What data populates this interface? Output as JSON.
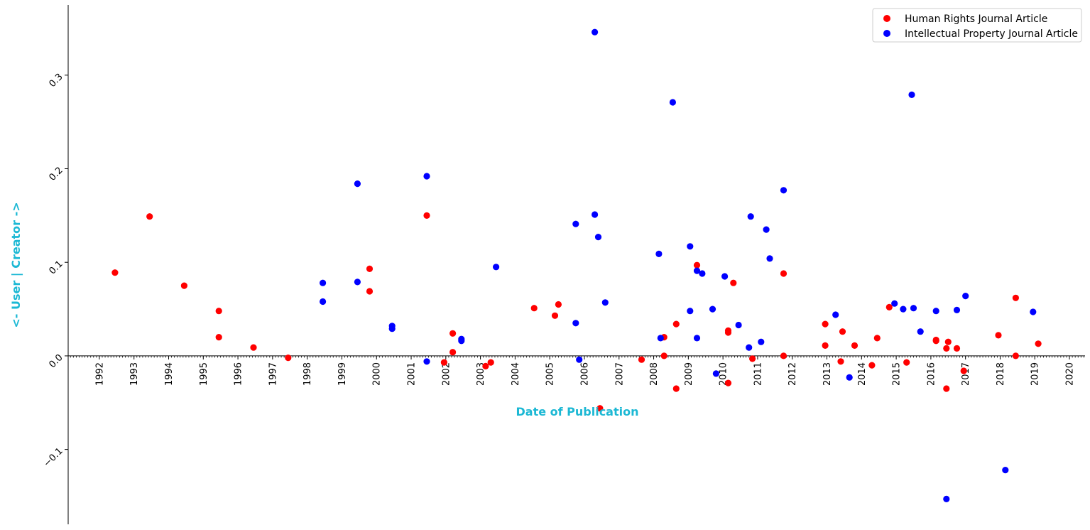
{
  "chart_data": {
    "type": "scatter",
    "xlabel": "Date of Publication",
    "ylabel": "<- User | Creator ->",
    "label_color": "#1cb8d4",
    "xlim": [
      1991.1,
      2020.45
    ],
    "ylim": [
      -0.18,
      0.375
    ],
    "x_ticks": [
      "1992",
      "1993",
      "1994",
      "1995",
      "1996",
      "1997",
      "1998",
      "1999",
      "2000",
      "2001",
      "2002",
      "2003",
      "2004",
      "2005",
      "2006",
      "2007",
      "2008",
      "2009",
      "2010",
      "2011",
      "2012",
      "2013",
      "2014",
      "2015",
      "2016",
      "2017",
      "2018",
      "2019",
      "2020"
    ],
    "y_ticks": [
      {
        "value": -0.1,
        "label": "−0.1"
      },
      {
        "value": 0.0,
        "label": "0.0"
      },
      {
        "value": 0.1,
        "label": "0.1"
      },
      {
        "value": 0.2,
        "label": "0.2"
      },
      {
        "value": 0.3,
        "label": "0.3"
      }
    ],
    "legend_position": "top-right",
    "series": [
      {
        "name": "Human Rights Journal Article",
        "color": "#ff0000",
        "points": [
          [
            1992.45,
            0.089
          ],
          [
            1993.45,
            0.149
          ],
          [
            1994.45,
            0.075
          ],
          [
            1995.45,
            0.048
          ],
          [
            1995.45,
            0.02
          ],
          [
            1996.45,
            0.009
          ],
          [
            1997.45,
            -0.002
          ],
          [
            1999.8,
            0.093
          ],
          [
            1999.8,
            0.069
          ],
          [
            2001.45,
            0.15
          ],
          [
            2001.95,
            -0.007
          ],
          [
            2002.2,
            0.024
          ],
          [
            2002.2,
            0.004
          ],
          [
            2003.15,
            -0.011
          ],
          [
            2003.3,
            -0.007
          ],
          [
            2004.55,
            0.051
          ],
          [
            2005.15,
            0.043
          ],
          [
            2005.25,
            0.055
          ],
          [
            2006.45,
            -0.056
          ],
          [
            2007.65,
            -0.004
          ],
          [
            2008.3,
            0.02
          ],
          [
            2008.3,
            0.0
          ],
          [
            2008.65,
            0.034
          ],
          [
            2008.65,
            -0.035
          ],
          [
            2009.25,
            0.097
          ],
          [
            2010.15,
            0.027
          ],
          [
            2010.15,
            0.025
          ],
          [
            2010.15,
            -0.029
          ],
          [
            2010.3,
            0.078
          ],
          [
            2010.85,
            -0.003
          ],
          [
            2011.75,
            0.088
          ],
          [
            2011.75,
            0.0
          ],
          [
            2012.95,
            0.034
          ],
          [
            2012.95,
            0.011
          ],
          [
            2013.4,
            -0.006
          ],
          [
            2013.45,
            0.026
          ],
          [
            2013.8,
            0.011
          ],
          [
            2014.3,
            -0.01
          ],
          [
            2014.45,
            0.019
          ],
          [
            2014.8,
            0.052
          ],
          [
            2015.3,
            -0.007
          ],
          [
            2016.15,
            0.017
          ],
          [
            2016.15,
            0.016
          ],
          [
            2016.45,
            0.008
          ],
          [
            2016.45,
            -0.035
          ],
          [
            2016.5,
            0.015
          ],
          [
            2016.75,
            0.008
          ],
          [
            2016.95,
            -0.016
          ],
          [
            2017.95,
            0.022
          ],
          [
            2018.45,
            0.062
          ],
          [
            2018.45,
            0.0
          ],
          [
            2019.1,
            0.013
          ]
        ]
      },
      {
        "name": "Intellectual Property Journal Article",
        "color": "#0000ff",
        "points": [
          [
            1998.45,
            0.078
          ],
          [
            1998.45,
            0.058
          ],
          [
            1999.45,
            0.184
          ],
          [
            1999.45,
            0.079
          ],
          [
            2000.45,
            0.032
          ],
          [
            2000.45,
            0.029
          ],
          [
            2001.45,
            0.192
          ],
          [
            2001.45,
            -0.006
          ],
          [
            2002.45,
            0.018
          ],
          [
            2002.45,
            0.016
          ],
          [
            2003.45,
            0.095
          ],
          [
            2005.75,
            0.141
          ],
          [
            2005.75,
            0.035
          ],
          [
            2005.85,
            -0.004
          ],
          [
            2006.3,
            0.346
          ],
          [
            2006.3,
            0.151
          ],
          [
            2006.4,
            0.127
          ],
          [
            2006.6,
            0.057
          ],
          [
            2008.15,
            0.109
          ],
          [
            2008.2,
            0.019
          ],
          [
            2008.55,
            0.271
          ],
          [
            2009.05,
            0.117
          ],
          [
            2009.05,
            0.048
          ],
          [
            2009.25,
            0.091
          ],
          [
            2009.25,
            0.019
          ],
          [
            2009.4,
            0.088
          ],
          [
            2009.7,
            0.05
          ],
          [
            2009.8,
            -0.019
          ],
          [
            2010.05,
            0.085
          ],
          [
            2010.45,
            0.033
          ],
          [
            2010.75,
            0.009
          ],
          [
            2010.8,
            0.149
          ],
          [
            2011.1,
            0.015
          ],
          [
            2011.25,
            0.135
          ],
          [
            2011.35,
            0.104
          ],
          [
            2011.75,
            0.177
          ],
          [
            2013.25,
            0.044
          ],
          [
            2013.65,
            -0.023
          ],
          [
            2014.95,
            0.056
          ],
          [
            2015.2,
            0.05
          ],
          [
            2015.45,
            0.279
          ],
          [
            2015.5,
            0.051
          ],
          [
            2015.7,
            0.026
          ],
          [
            2016.15,
            0.048
          ],
          [
            2016.45,
            -0.153
          ],
          [
            2016.75,
            0.049
          ],
          [
            2017.0,
            0.064
          ],
          [
            2018.15,
            -0.122
          ],
          [
            2018.95,
            0.047
          ]
        ]
      }
    ]
  }
}
